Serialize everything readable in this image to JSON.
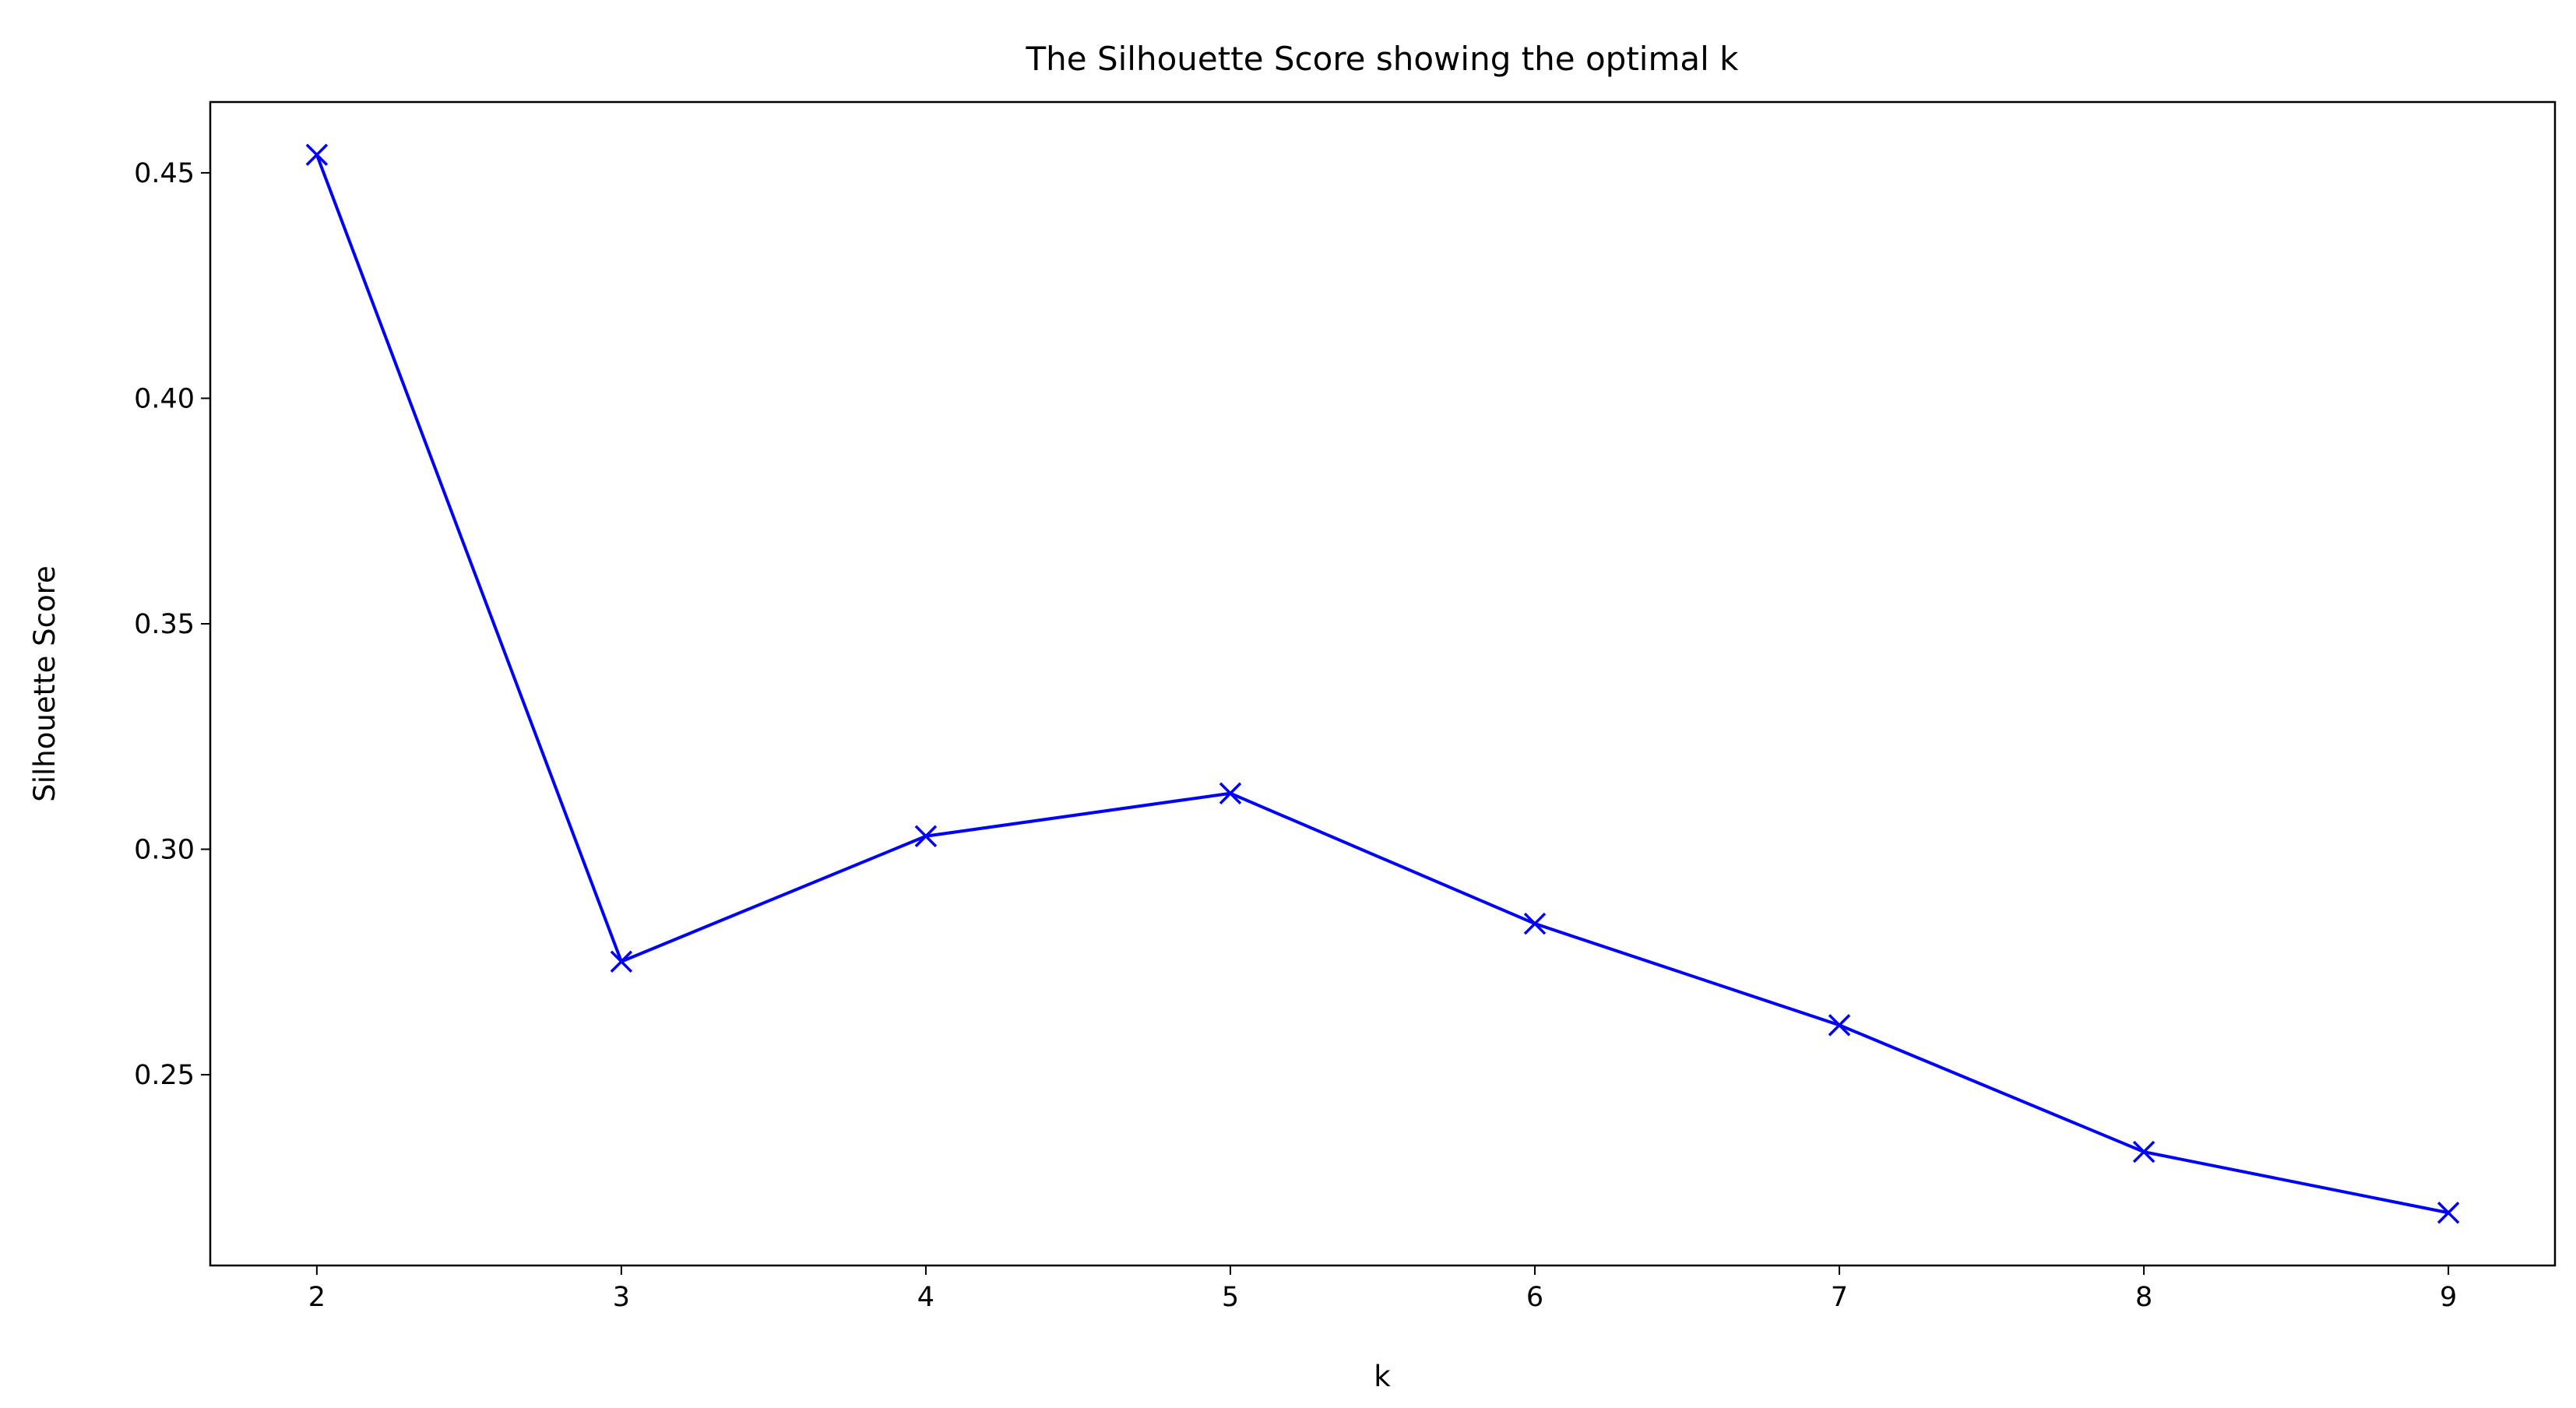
{
  "chart_data": {
    "type": "line",
    "title": "The Silhouette Score showing the optimal k",
    "x_label": "k",
    "y_label": "Silhouette Score",
    "x": [
      2,
      3,
      4,
      5,
      6,
      7,
      8,
      9
    ],
    "values": [
      0.454,
      0.2751,
      0.3029,
      0.3124,
      0.2835,
      0.261,
      0.2329,
      0.2194
    ],
    "color": "#0000ff",
    "marker": "x",
    "xlim": [
      1.65,
      9.35
    ],
    "xticks": [
      2,
      3,
      4,
      5,
      6,
      7,
      8,
      9
    ],
    "ylim": [
      0.2077,
      0.4657
    ],
    "yticks": [
      0.25,
      {
        "value": 0.3,
        "label": "0.30"
      },
      0.35,
      {
        "value": 0.4,
        "label": "0.40"
      },
      0.45
    ],
    "grid": false
  }
}
